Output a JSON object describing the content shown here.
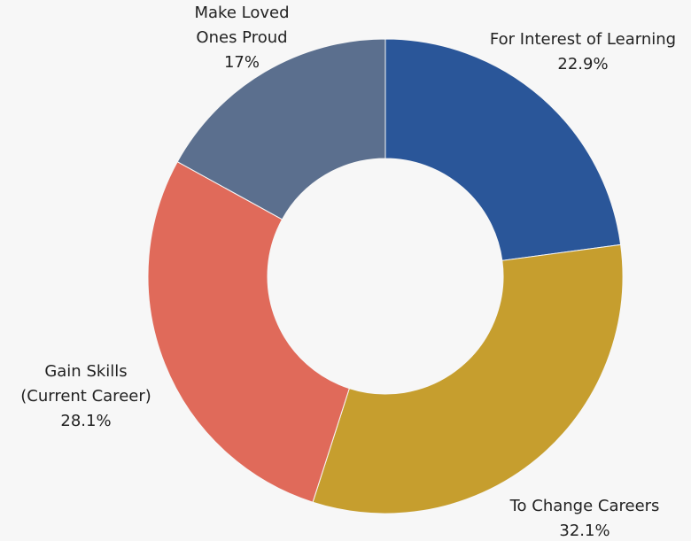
{
  "chart_data": {
    "type": "donut",
    "categories": [
      "For Interest of Learning",
      "To Change Careers",
      "Gain Skills\n(Current Career)",
      "Make Loved\nOnes Proud"
    ],
    "values": [
      22.9,
      32.1,
      28.1,
      17
    ],
    "value_labels": [
      "22.9%",
      "32.1%",
      "28.1%",
      "17%"
    ],
    "colors": [
      "#2a5699",
      "#c69e2e",
      "#e06a5a",
      "#5b6f8e"
    ]
  }
}
